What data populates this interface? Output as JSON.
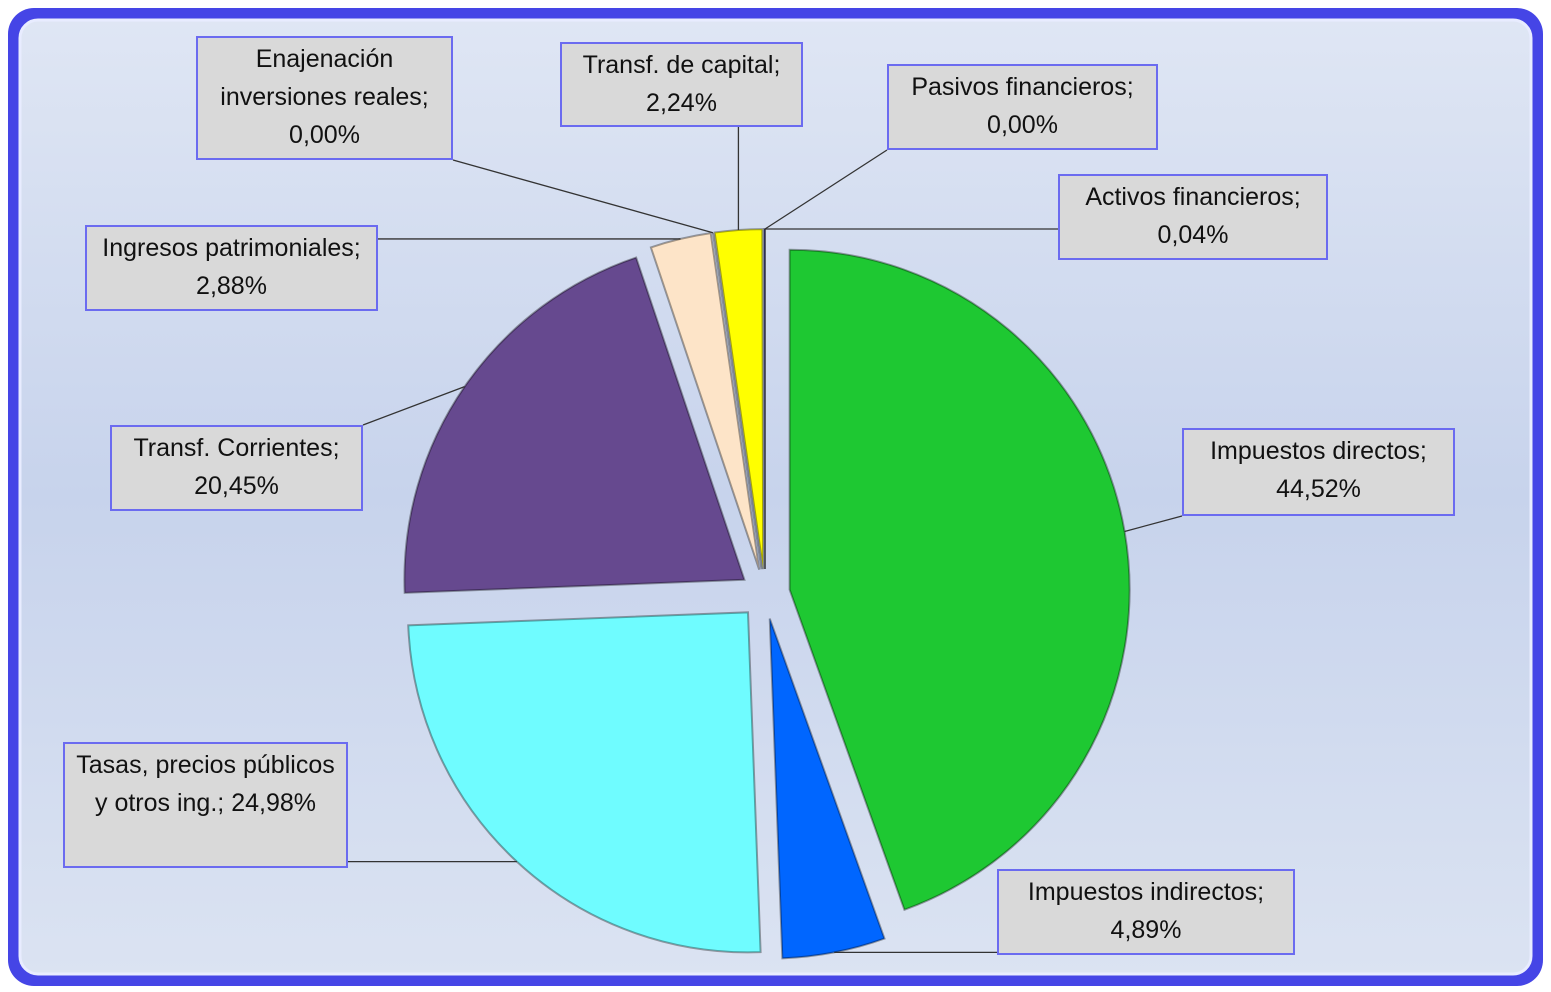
{
  "chart_data": {
    "type": "pie",
    "categories": [
      "Impuestos directos;",
      "Impuestos indirectos;",
      "Tasas, precios públicos y otros ing.;",
      "Transf. Corrientes;",
      "Ingresos patrimoniales;",
      "Enajenación inversiones reales;",
      "Transf. de capital;",
      "Activos financieros;",
      "Pasivos financieros;"
    ],
    "values": [
      44.52,
      4.89,
      24.98,
      20.45,
      2.88,
      0.0,
      2.24,
      0.04,
      0.0
    ],
    "value_labels": [
      "44,52%",
      "4,89%",
      "24,98%",
      "20,45%",
      "2,88%",
      "0,00%",
      "2,24%",
      "0,04%",
      "0,00%"
    ],
    "colors": [
      "#1ec832",
      "#0066ff",
      "#6ffcff",
      "#66498f",
      "#fde4c8",
      "#7f7f7f",
      "#ffff00",
      "#4f4fcf",
      "#9999cc"
    ]
  }
}
